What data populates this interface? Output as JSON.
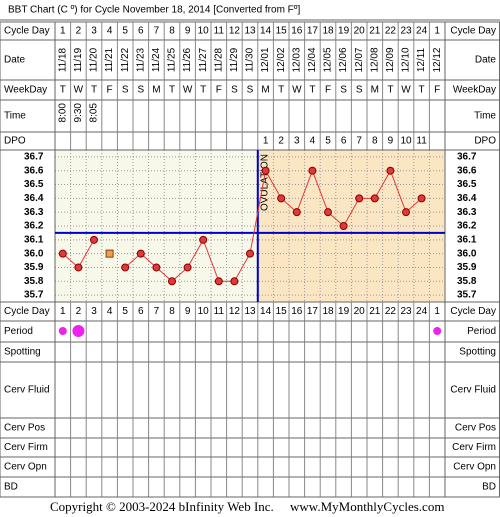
{
  "title": "BBT Chart (C º) for Cycle November 18, 2014  [Converted from Fº]",
  "row_labels": {
    "cycle_day": "Cycle Day",
    "date": "Date",
    "weekday": "WeekDay",
    "time": "Time",
    "dpo": "DPO",
    "period": "Period",
    "spotting": "Spotting",
    "cerv_fluid": "Cerv Fluid",
    "cerv_pos": "Cerv Pos",
    "cerv_firm": "Cerv Firm",
    "cerv_opn": "Cerv Opn",
    "bd": "BD"
  },
  "chart_data": {
    "type": "line",
    "cycle_days": [
      1,
      2,
      3,
      4,
      5,
      6,
      7,
      8,
      9,
      10,
      11,
      12,
      13,
      14,
      15,
      16,
      17,
      18,
      19,
      20,
      21,
      22,
      23,
      24,
      1
    ],
    "categories": [
      "11/18",
      "11/19",
      "11/20",
      "11/21",
      "11/22",
      "11/23",
      "11/24",
      "11/25",
      "11/26",
      "11/27",
      "11/28",
      "11/29",
      "11/30",
      "12/01",
      "12/02",
      "12/03",
      "12/04",
      "12/05",
      "12/06",
      "12/07",
      "12/08",
      "12/09",
      "12/10",
      "12/11",
      "12/12"
    ],
    "weekdays": [
      "T",
      "W",
      "T",
      "F",
      "S",
      "S",
      "M",
      "T",
      "W",
      "T",
      "F",
      "S",
      "S",
      "M",
      "T",
      "W",
      "T",
      "F",
      "S",
      "S",
      "M",
      "T",
      "W",
      "T",
      "F"
    ],
    "times": [
      "8:00",
      "9:30",
      "8:05",
      null,
      null,
      null,
      null,
      null,
      null,
      null,
      null,
      null,
      null,
      null,
      null,
      null,
      null,
      null,
      null,
      null,
      null,
      null,
      null,
      null,
      null
    ],
    "dpo": [
      null,
      null,
      null,
      null,
      null,
      null,
      null,
      null,
      null,
      null,
      null,
      null,
      null,
      1,
      2,
      3,
      4,
      5,
      6,
      7,
      8,
      9,
      10,
      11,
      null
    ],
    "series": [
      {
        "color": "#e03a3a",
        "values": [
          36.0,
          35.9,
          36.1,
          null,
          35.9,
          36.0,
          35.9,
          35.8,
          35.9,
          36.1,
          35.8,
          35.8,
          36.0,
          36.6,
          36.4,
          36.3,
          36.6,
          36.3,
          36.2,
          36.4,
          36.4,
          36.6,
          36.3,
          36.4,
          null
        ]
      },
      {
        "color": "#f0a050",
        "values": [
          null,
          null,
          null,
          36.0,
          null,
          null,
          null,
          null,
          null,
          null,
          null,
          null,
          null,
          null,
          null,
          null,
          null,
          null,
          null,
          null,
          null,
          null,
          null,
          null,
          null
        ]
      }
    ],
    "ylim": [
      35.65,
      36.75
    ],
    "yticks": [
      35.7,
      35.8,
      35.9,
      {
        "value": 36.0,
        "label": "36.0"
      },
      36.1,
      36.2,
      36.3,
      36.4,
      36.5,
      36.6,
      36.7
    ],
    "grid": true,
    "coverline": 36.15,
    "coverline_color": "#0000cc",
    "ovulation_label": "OVULATION"
  },
  "footer": {
    "copyright": "Copyright © 2003-2024 bInfinity Web Inc.",
    "site": "www.MyMonthlyCycles.com"
  }
}
